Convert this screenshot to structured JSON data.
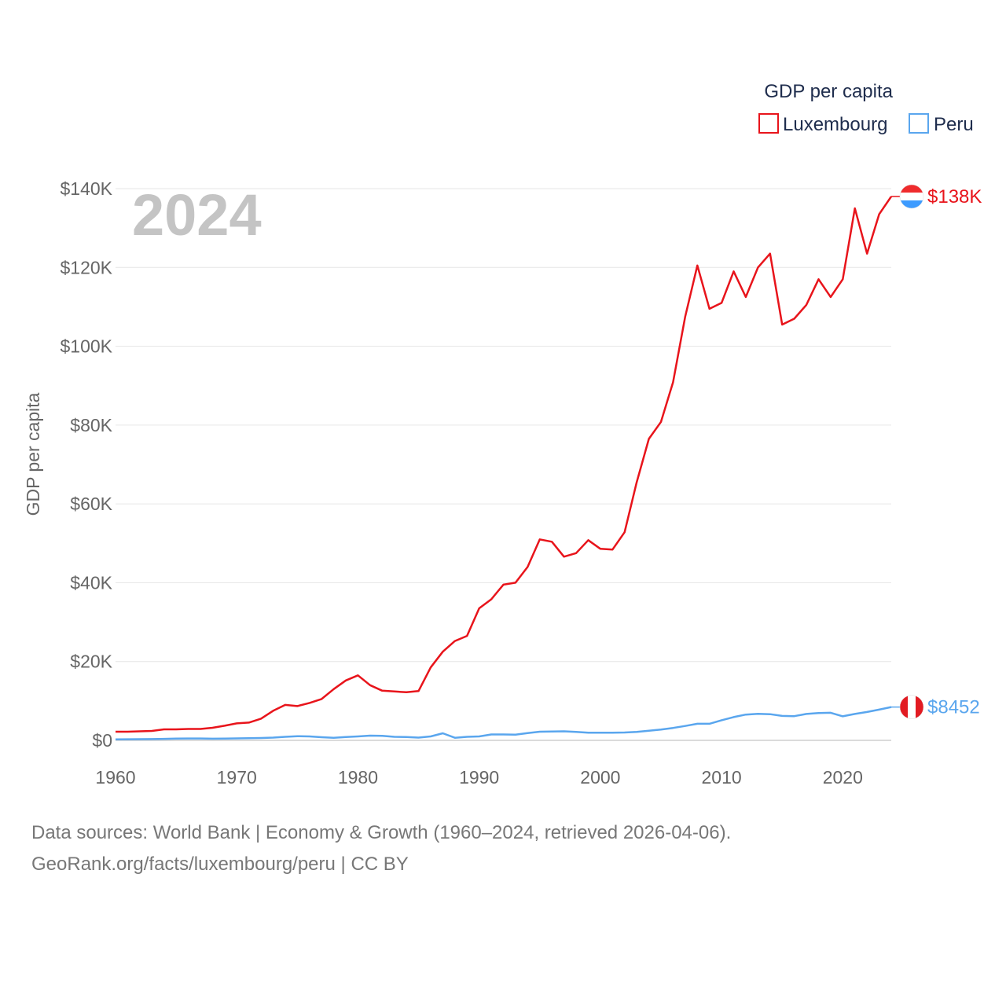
{
  "chart_data": {
    "type": "line",
    "year_label": "2024",
    "ylabel": "GDP per capita",
    "xlabel": "",
    "xlim": [
      1960,
      2024
    ],
    "ylim": [
      0,
      140000
    ],
    "x_ticks": [
      1960,
      1970,
      1980,
      1990,
      2000,
      2010,
      2020
    ],
    "x_tick_labels": [
      "1960",
      "1970",
      "1980",
      "1990",
      "2000",
      "2010",
      "2020"
    ],
    "y_ticks": [
      0,
      20000,
      40000,
      60000,
      80000,
      100000,
      120000,
      140000
    ],
    "y_tick_labels": [
      "$0",
      "$20K",
      "$40K",
      "$60K",
      "$80K",
      "$100K",
      "$120K",
      "$140K"
    ],
    "legend": {
      "title": "GDP per capita",
      "position": "top-right"
    },
    "x": [
      1960,
      1961,
      1962,
      1963,
      1964,
      1965,
      1966,
      1967,
      1968,
      1969,
      1970,
      1971,
      1972,
      1973,
      1974,
      1975,
      1976,
      1977,
      1978,
      1979,
      1980,
      1981,
      1982,
      1983,
      1984,
      1985,
      1986,
      1987,
      1988,
      1989,
      1990,
      1991,
      1992,
      1993,
      1994,
      1995,
      1996,
      1997,
      1998,
      1999,
      2000,
      2001,
      2002,
      2003,
      2004,
      2005,
      2006,
      2007,
      2008,
      2009,
      2010,
      2011,
      2012,
      2013,
      2014,
      2015,
      2016,
      2017,
      2018,
      2019,
      2020,
      2021,
      2022,
      2023,
      2024
    ],
    "series": [
      {
        "name": "Luxembourg",
        "color": "#e8141b",
        "end_label": "$138K",
        "flag": "luxembourg-flag",
        "values": [
          2200,
          2200,
          2300,
          2400,
          2800,
          2800,
          2900,
          2900,
          3200,
          3700,
          4300,
          4500,
          5500,
          7500,
          9000,
          8700,
          9500,
          10500,
          13000,
          15200,
          16500,
          14000,
          12600,
          12400,
          12200,
          12500,
          18500,
          22500,
          25200,
          26500,
          33500,
          35800,
          39500,
          40000,
          44000,
          51000,
          50400,
          46600,
          47500,
          50800,
          48600,
          48400,
          52800,
          65500,
          76500,
          80800,
          90900,
          107500,
          120500,
          109500,
          111000,
          119000,
          112500,
          120000,
          123500,
          105500,
          107000,
          110500,
          117000,
          112500,
          117000,
          135000,
          123500,
          133500,
          138000
        ]
      },
      {
        "name": "Peru",
        "color": "#5aa6ee",
        "end_label": "$8452",
        "flag": "peru-flag",
        "values": [
          250,
          270,
          300,
          320,
          380,
          430,
          480,
          470,
          420,
          450,
          500,
          550,
          600,
          700,
          900,
          1050,
          1000,
          800,
          650,
          850,
          1000,
          1200,
          1150,
          900,
          850,
          700,
          1000,
          1800,
          650,
          900,
          1000,
          1500,
          1500,
          1450,
          1850,
          2200,
          2250,
          2300,
          2150,
          1950,
          1950,
          1950,
          2000,
          2150,
          2450,
          2750,
          3150,
          3650,
          4200,
          4200,
          5100,
          5900,
          6550,
          6750,
          6650,
          6200,
          6150,
          6700,
          6950,
          7000,
          6100,
          6700,
          7200,
          7800,
          8452
        ]
      }
    ]
  },
  "footer": {
    "line1": "Data sources: World Bank | Economy & Growth (1960–2024, retrieved 2026-04-06).",
    "line2": "GeoRank.org/facts/luxembourg/peru | CC BY"
  }
}
